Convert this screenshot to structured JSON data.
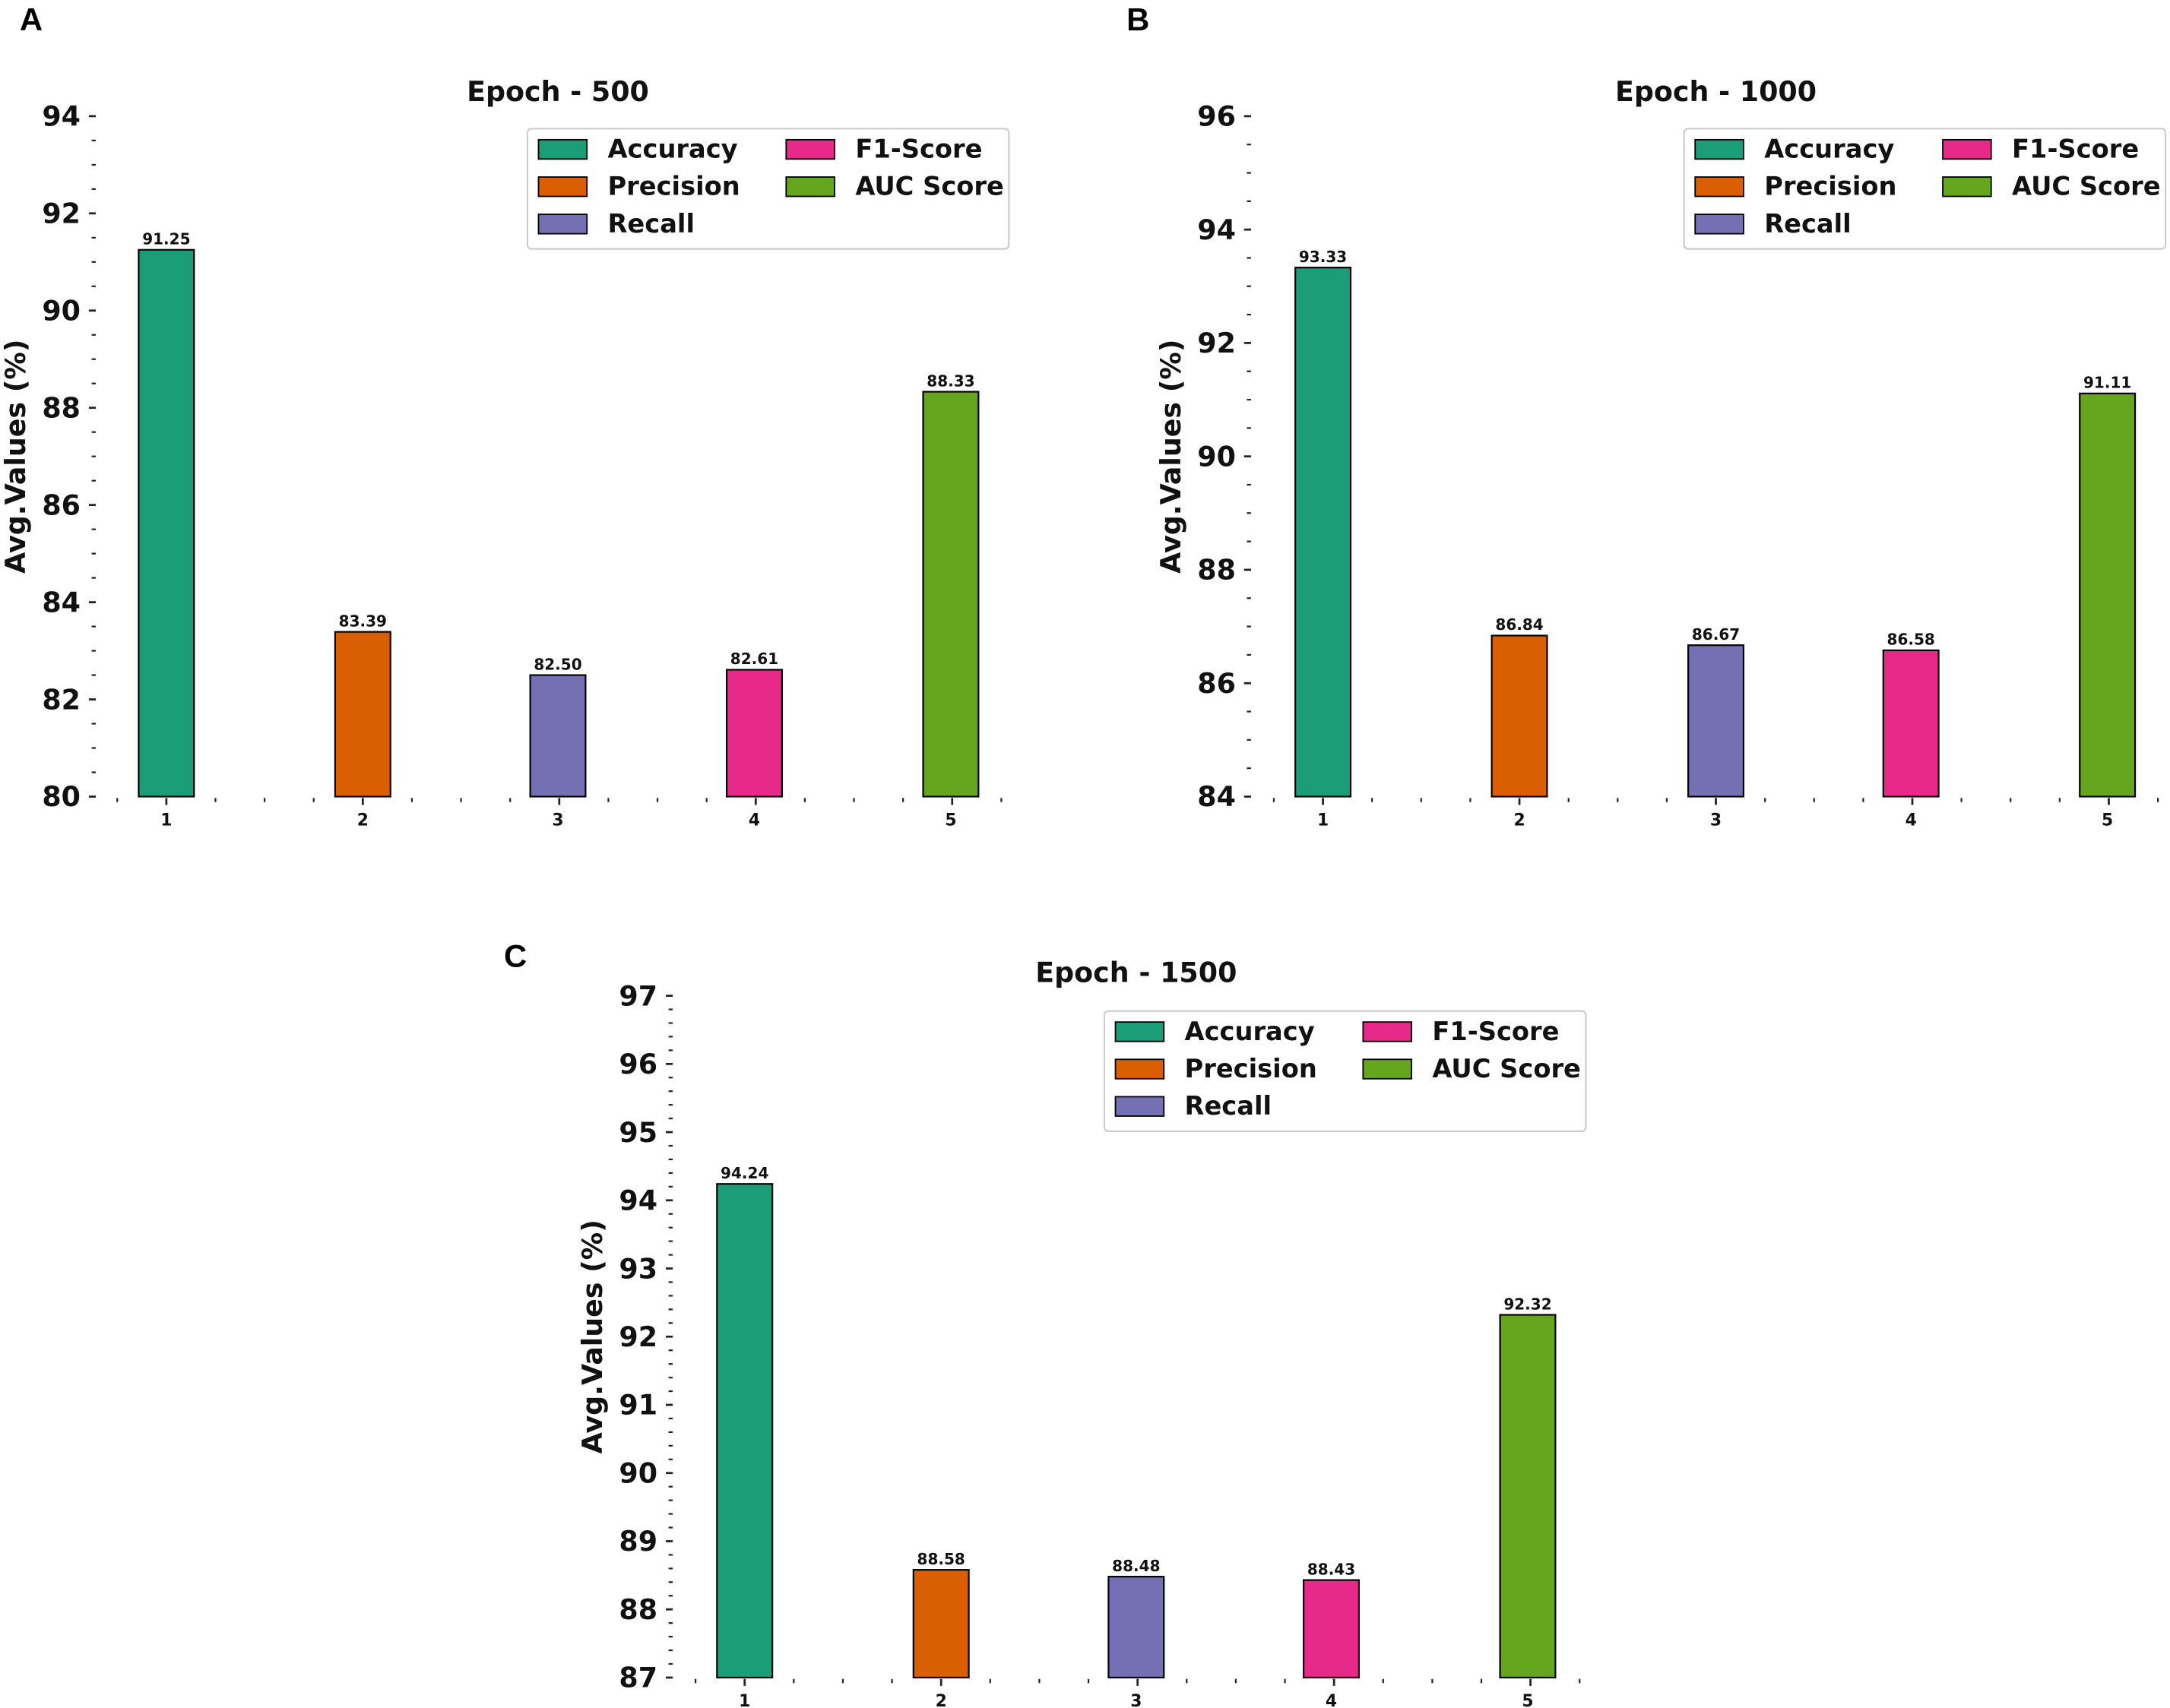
{
  "chart_data": [
    {
      "type": "bar",
      "panel_label": "A",
      "title": "Epoch - 500",
      "xlabel": "",
      "ylabel": "Avg.Values (%)",
      "categories": [
        "1",
        "2",
        "3",
        "4",
        "5"
      ],
      "series_names": [
        "Accuracy",
        "Precision",
        "Recall",
        "F1-Score",
        "AUC Score"
      ],
      "values": [
        91.25,
        83.39,
        82.5,
        82.61,
        88.33
      ],
      "value_labels": [
        "91.25",
        "83.39",
        "82.50",
        "82.61",
        "88.33"
      ],
      "ylim": [
        80,
        94
      ],
      "yticks": [
        "80",
        "82",
        "84",
        "86",
        "88",
        "90",
        "92",
        "94"
      ],
      "ytick_step": 2,
      "yminor_step": 0.5,
      "legend": "top-right",
      "grid": false
    },
    {
      "type": "bar",
      "panel_label": "B",
      "title": "Epoch - 1000",
      "xlabel": "",
      "ylabel": "Avg.Values (%)",
      "categories": [
        "1",
        "2",
        "3",
        "4",
        "5"
      ],
      "series_names": [
        "Accuracy",
        "Precision",
        "Recall",
        "F1-Score",
        "AUC Score"
      ],
      "values": [
        93.33,
        86.84,
        86.67,
        86.58,
        91.11
      ],
      "value_labels": [
        "93.33",
        "86.84",
        "86.67",
        "86.58",
        "91.11"
      ],
      "ylim": [
        84,
        96
      ],
      "yticks": [
        "84",
        "86",
        "88",
        "90",
        "92",
        "94",
        "96"
      ],
      "ytick_step": 2,
      "yminor_step": 0.5,
      "legend": "top-right",
      "grid": false
    },
    {
      "type": "bar",
      "panel_label": "C",
      "title": "Epoch - 1500",
      "xlabel": "",
      "ylabel": "Avg.Values (%)",
      "categories": [
        "1",
        "2",
        "3",
        "4",
        "5"
      ],
      "series_names": [
        "Accuracy",
        "Precision",
        "Recall",
        "F1-Score",
        "AUC Score"
      ],
      "values": [
        94.24,
        88.58,
        88.48,
        88.43,
        92.32
      ],
      "value_labels": [
        "94.24",
        "88.58",
        "88.48",
        "88.43",
        "92.32"
      ],
      "ylim": [
        87,
        97
      ],
      "yticks": [
        "87",
        "88",
        "89",
        "90",
        "91",
        "92",
        "93",
        "94",
        "95",
        "96",
        "97"
      ],
      "ytick_step": 1,
      "yminor_step": 0.2,
      "legend": "top-right",
      "grid": false
    }
  ],
  "colors": [
    "#1b9e77",
    "#d95f02",
    "#7570b3",
    "#e7298a",
    "#66a61e"
  ]
}
